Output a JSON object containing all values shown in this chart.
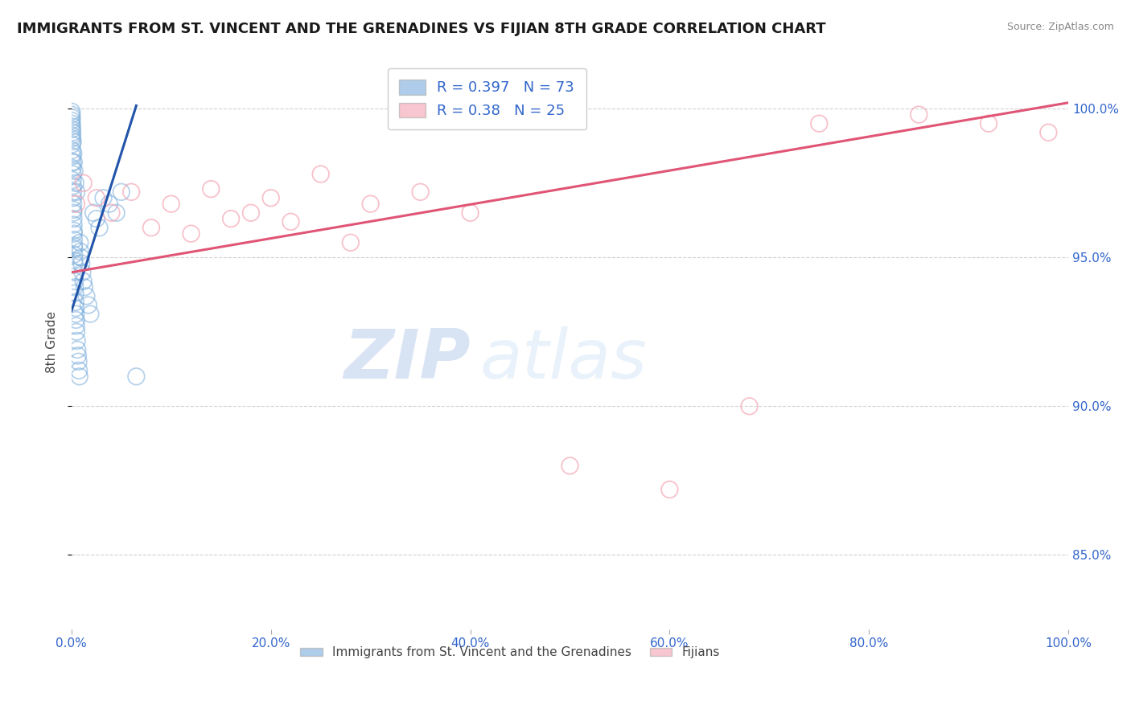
{
  "title": "IMMIGRANTS FROM ST. VINCENT AND THE GRENADINES VS FIJIAN 8TH GRADE CORRELATION CHART",
  "source": "Source: ZipAtlas.com",
  "ylabel": "8th Grade",
  "x_min": 0.0,
  "x_max": 100.0,
  "y_min": 82.5,
  "y_max": 101.8,
  "y_ticks": [
    85.0,
    90.0,
    95.0,
    100.0
  ],
  "x_ticks": [
    0.0,
    20.0,
    40.0,
    60.0,
    80.0,
    100.0
  ],
  "blue_R": 0.397,
  "blue_N": 73,
  "pink_R": 0.38,
  "pink_N": 25,
  "blue_color": "#7AADDC",
  "pink_color": "#F4A0B0",
  "blue_line_color": "#2255AA",
  "pink_line_color": "#E05575",
  "legend_text_color": "#3366CC",
  "legend_label_blue": "Immigrants from St. Vincent and the Grenadines",
  "legend_label_pink": "Fijians",
  "watermark_zip": "ZIP",
  "watermark_atlas": "atlas",
  "blue_scatter_x": [
    0.02,
    0.03,
    0.04,
    0.05,
    0.06,
    0.07,
    0.08,
    0.09,
    0.1,
    0.11,
    0.12,
    0.13,
    0.14,
    0.15,
    0.16,
    0.17,
    0.18,
    0.19,
    0.2,
    0.21,
    0.22,
    0.23,
    0.24,
    0.25,
    0.26,
    0.27,
    0.28,
    0.29,
    0.3,
    0.32,
    0.34,
    0.36,
    0.38,
    0.4,
    0.42,
    0.44,
    0.46,
    0.48,
    0.5,
    0.55,
    0.6,
    0.65,
    0.7,
    0.75,
    0.8,
    0.85,
    0.9,
    0.95,
    1.0,
    1.1,
    1.2,
    1.3,
    1.5,
    1.7,
    1.9,
    2.2,
    2.5,
    2.8,
    3.2,
    3.8,
    4.5,
    5.0,
    0.03,
    0.05,
    0.07,
    0.1,
    0.15,
    0.2,
    0.25,
    0.3,
    0.4,
    0.5,
    6.5
  ],
  "blue_scatter_y": [
    99.8,
    99.6,
    99.5,
    99.3,
    99.1,
    99.0,
    98.8,
    98.6,
    98.4,
    98.2,
    98.0,
    97.8,
    97.6,
    97.4,
    97.2,
    97.0,
    96.8,
    96.6,
    96.5,
    96.3,
    96.1,
    95.9,
    95.8,
    95.6,
    95.4,
    95.3,
    95.1,
    94.9,
    94.8,
    94.5,
    94.2,
    94.0,
    93.8,
    93.5,
    93.3,
    93.1,
    92.9,
    92.7,
    92.5,
    92.2,
    91.9,
    91.7,
    91.5,
    91.2,
    91.0,
    95.5,
    95.2,
    95.0,
    94.8,
    94.5,
    94.2,
    94.0,
    93.7,
    93.4,
    93.1,
    96.5,
    96.3,
    96.0,
    97.0,
    96.8,
    96.5,
    97.2,
    99.9,
    99.7,
    99.4,
    99.2,
    98.9,
    98.5,
    98.2,
    97.9,
    97.5,
    97.2,
    91.0
  ],
  "pink_scatter_x": [
    0.5,
    1.2,
    2.5,
    4.0,
    6.0,
    8.0,
    10.0,
    14.0,
    18.0,
    20.0,
    22.0,
    25.0,
    30.0,
    35.0,
    40.0,
    12.0,
    16.0,
    28.0,
    50.0,
    60.0,
    68.0,
    75.0,
    85.0,
    92.0,
    98.0
  ],
  "pink_scatter_y": [
    96.8,
    97.5,
    97.0,
    96.5,
    97.2,
    96.0,
    96.8,
    97.3,
    96.5,
    97.0,
    96.2,
    97.8,
    96.8,
    97.2,
    96.5,
    95.8,
    96.3,
    95.5,
    88.0,
    87.2,
    90.0,
    99.5,
    99.8,
    99.5,
    99.2
  ],
  "blue_trendline_x": [
    0.0,
    6.5
  ],
  "blue_trendline_y": [
    93.2,
    100.1
  ],
  "pink_trendline_x": [
    0.0,
    100.0
  ],
  "pink_trendline_y": [
    94.5,
    100.2
  ]
}
